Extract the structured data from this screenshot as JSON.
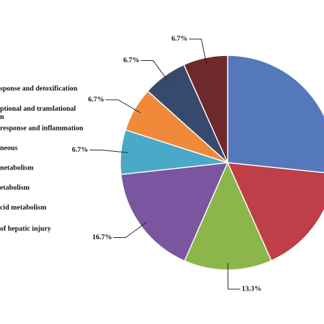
{
  "chart_data": {
    "type": "pie",
    "categories": [
      "sponse and detoxification",
      "ptional and translational\nn",
      "response and inflammation",
      "neous",
      "netabolism",
      "etabolism",
      "cid metabolism",
      "of hepatic injury"
    ],
    "values": [
      26.7,
      16.7,
      13.3,
      16.7,
      6.7,
      6.7,
      6.7,
      6.7
    ],
    "value_labels": [
      null,
      null,
      "13.3%",
      "16.7%",
      "6.7%",
      "6.7%",
      "6.7%",
      "6.7%"
    ],
    "colors": [
      "#5578bb",
      "#be3f47",
      "#8db64a",
      "#7a55a0",
      "#4aa9c6",
      "#f08a3a",
      "#374a6e",
      "#6e2a2a"
    ]
  }
}
